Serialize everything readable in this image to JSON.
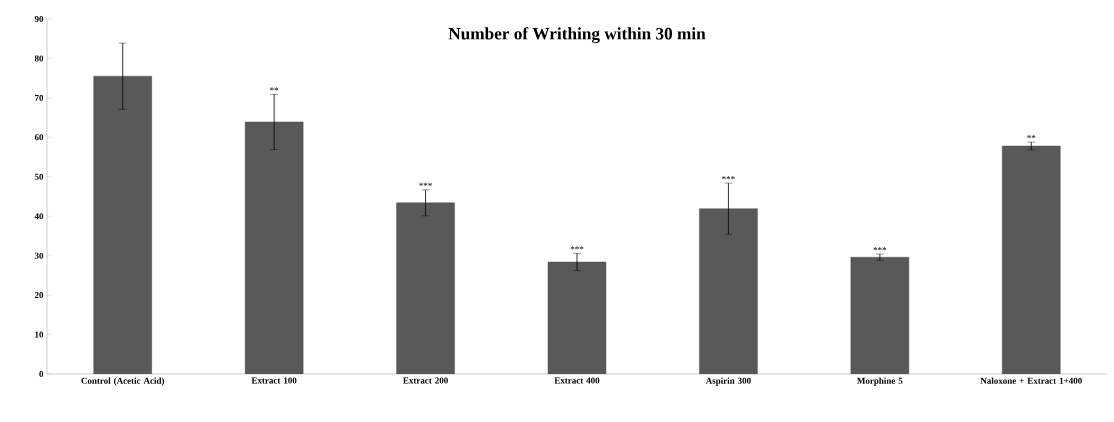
{
  "chart_data": {
    "type": "bar",
    "title": "Number of Writhing within 30 min",
    "categories": [
      "Control (Acetic Acid)",
      "Extract 100",
      "Extract 200",
      "Extract 400",
      "Aspirin 300",
      "Morphine 5",
      "Naloxone + Extract 1+400"
    ],
    "values": [
      75.5,
      63.9,
      43.4,
      28.4,
      41.9,
      29.6,
      57.8
    ],
    "errors": [
      8.4,
      7.0,
      3.3,
      2.2,
      6.5,
      0.8,
      1.0
    ],
    "color": "#595959",
    "ylim": [
      0,
      90
    ],
    "yticks": [
      0,
      10,
      20,
      30,
      40,
      50,
      60,
      70,
      80,
      90
    ],
    "grid": false,
    "annotations": [
      {
        "text": "**",
        "x": "Extract 100",
        "y": 70.9
      },
      {
        "text": "***",
        "x": "Extract 200",
        "y": 46.7
      },
      {
        "text": "***",
        "x": "Extract 400",
        "y": 30.6
      },
      {
        "text": "***",
        "x": "Aspirin 300",
        "y": 48.4
      },
      {
        "text": "***",
        "x": "Morphine 5",
        "y": 30.4
      },
      {
        "text": "**",
        "x": "Naloxone + Extract 1+400",
        "y": 58.8
      }
    ]
  }
}
